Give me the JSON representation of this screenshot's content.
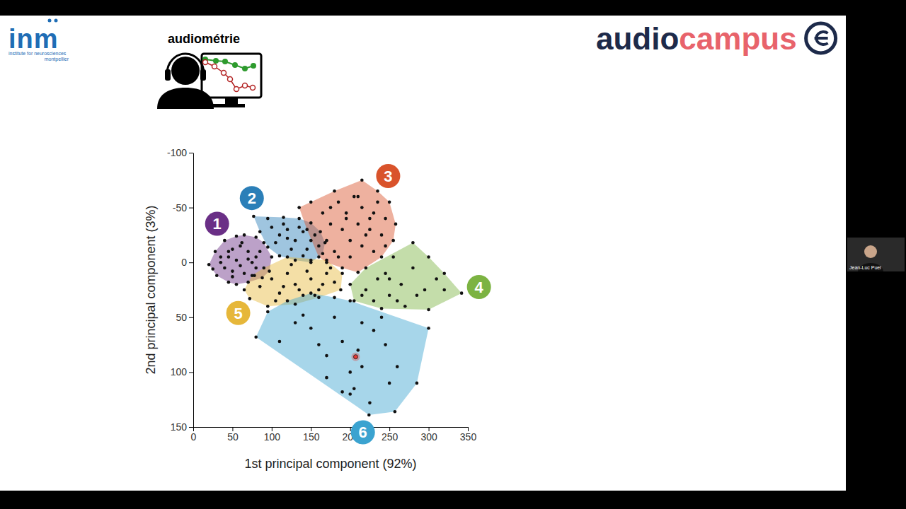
{
  "slide": {
    "logo": "inm",
    "logo_subtitle": "institute for neurosciences",
    "logo_city": "montpellier",
    "section": "audiométrie",
    "brand_first": "audio",
    "brand_second": "campus",
    "speaker": "Jean-Luc Puel"
  },
  "chart_data": {
    "type": "scatter",
    "x_label": "1st principal component (92%)",
    "y_label": "2nd principal component (3%)",
    "xlim": [
      0,
      350
    ],
    "xticks": [
      0,
      50,
      100,
      150,
      200,
      250,
      300,
      350
    ],
    "ylim": [
      -100,
      150
    ],
    "yticks": [
      -100,
      -50,
      0,
      50,
      100,
      150
    ],
    "grid": false,
    "series": [
      {
        "name": "1",
        "color": "#6a2f86",
        "x": [
          20,
          28,
          40,
          55,
          65,
          80,
          90,
          100,
          97,
          88,
          70,
          55,
          45,
          30,
          25,
          35,
          45,
          50,
          60,
          70,
          80,
          40,
          50,
          60,
          70,
          80,
          55,
          65,
          45,
          75,
          85,
          35,
          50,
          62,
          78
        ],
        "y": [
          2,
          -10,
          -20,
          -24,
          -25,
          -23,
          -18,
          -5,
          8,
          14,
          18,
          20,
          18,
          12,
          6,
          0,
          -5,
          -12,
          -15,
          -10,
          -5,
          5,
          8,
          3,
          -3,
          5,
          -2,
          10,
          -10,
          0,
          -10,
          -5,
          13,
          -18,
          12
        ]
      },
      {
        "name": "2",
        "color": "#2b7fb8",
        "x": [
          77,
          95,
          115,
          135,
          150,
          162,
          168,
          165,
          150,
          130,
          110,
          95,
          85,
          100,
          110,
          120,
          130,
          140,
          150,
          105,
          125,
          145,
          155,
          115,
          135,
          160,
          120,
          140
        ],
        "y": [
          -42,
          -40,
          -41,
          -40,
          -36,
          -28,
          -18,
          -8,
          0,
          -2,
          -6,
          -14,
          -28,
          -32,
          -25,
          -30,
          -20,
          -28,
          -20,
          -18,
          -12,
          -12,
          -25,
          -35,
          -32,
          -15,
          -22,
          -6
        ]
      },
      {
        "name": "3",
        "color": "#d9532b",
        "x": [
          135,
          150,
          180,
          215,
          235,
          250,
          258,
          255,
          240,
          210,
          190,
          170,
          160,
          145,
          165,
          175,
          185,
          195,
          205,
          215,
          225,
          235,
          245,
          170,
          180,
          190,
          200,
          210,
          220,
          230,
          240,
          185,
          200,
          215,
          230,
          175,
          195,
          210,
          225,
          245
        ],
        "y": [
          -50,
          -55,
          -65,
          -75,
          -65,
          -55,
          -35,
          -20,
          -5,
          9,
          5,
          0,
          -5,
          -30,
          -45,
          -35,
          -55,
          -45,
          -60,
          -50,
          -40,
          -55,
          -40,
          -20,
          -10,
          -30,
          -20,
          -35,
          -25,
          -10,
          -25,
          -5,
          -5,
          -15,
          -45,
          -50,
          -40,
          -60,
          -30,
          -15
        ]
      },
      {
        "name": "4",
        "color": "#7cb342",
        "x": [
          200,
          220,
          255,
          280,
          300,
          320,
          342,
          300,
          270,
          240,
          205,
          220,
          235,
          250,
          265,
          280,
          295,
          310,
          230,
          245,
          260,
          285,
          320,
          215,
          250
        ],
        "y": [
          20,
          5,
          -5,
          -18,
          -5,
          10,
          28,
          43,
          40,
          42,
          35,
          25,
          15,
          30,
          20,
          5,
          25,
          15,
          35,
          10,
          35,
          30,
          25,
          30,
          15
        ]
      },
      {
        "name": "5",
        "color": "#e6b73a",
        "x": [
          65,
          75,
          90,
          120,
          150,
          170,
          190,
          188,
          160,
          130,
          95,
          72,
          85,
          100,
          110,
          120,
          130,
          140,
          150,
          160,
          170,
          180,
          105,
          125,
          145,
          165,
          115,
          135,
          155,
          175
        ],
        "y": [
          25,
          12,
          5,
          -5,
          -2,
          -2,
          10,
          25,
          32,
          38,
          40,
          33,
          22,
          15,
          28,
          10,
          20,
          30,
          15,
          25,
          10,
          18,
          35,
          2,
          8,
          20,
          22,
          25,
          30,
          5
        ]
      },
      {
        "name": "6",
        "color": "#3ba3d0",
        "x": [
          80,
          95,
          120,
          150,
          180,
          200,
          240,
          300,
          285,
          257,
          224,
          200,
          170,
          110,
          130,
          150,
          160,
          170,
          190,
          210,
          215,
          230,
          180,
          200,
          205,
          245,
          250,
          190,
          215,
          140,
          225,
          260
        ],
        "y": [
          68,
          45,
          35,
          28,
          32,
          35,
          50,
          60,
          110,
          136,
          139,
          120,
          105,
          72,
          55,
          60,
          75,
          85,
          72,
          80,
          95,
          62,
          50,
          100,
          115,
          75,
          110,
          118,
          55,
          48,
          128,
          95
        ]
      }
    ],
    "highlight": {
      "x": 207,
      "y": 86,
      "color": "#e53935"
    }
  }
}
